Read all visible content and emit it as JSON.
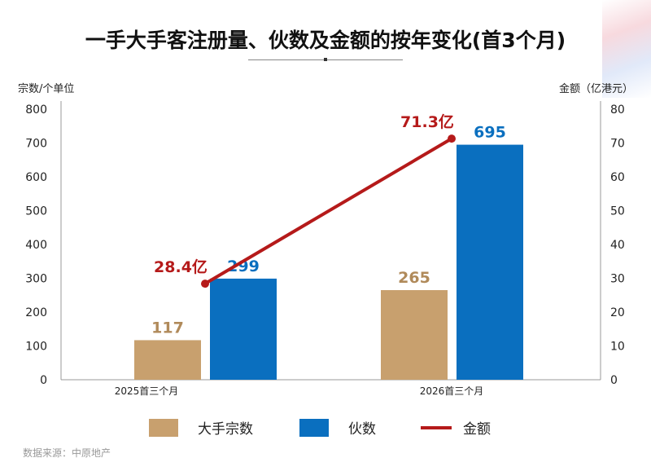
{
  "title": "一手大手客注册量、伙数及金额的按年变化(首3个月)",
  "source": "数据来源：中原地产",
  "colors": {
    "tan": "#C8A06E",
    "blue": "#0A6FBF",
    "red": "#B51A1A"
  },
  "chart_data": {
    "type": "bar+line",
    "title": "一手大手客注册量、伙数及金额的按年变化(首3个月)",
    "categories": [
      "2025首三个月",
      "2026首三个月"
    ],
    "ylabel_left": "宗数/个单位",
    "ylabel_right": "金额（亿港元）",
    "ylim_left": [
      0,
      800
    ],
    "ylim_right": [
      0,
      80
    ],
    "yticks_left": [
      0,
      100,
      200,
      300,
      400,
      500,
      600,
      700,
      800
    ],
    "yticks_right": [
      0,
      10,
      20,
      30,
      40,
      50,
      60,
      70,
      80
    ],
    "grid": false,
    "legend_position": "bottom",
    "series": [
      {
        "name": "大手宗数",
        "type": "bar",
        "axis": "left",
        "values": [
          117,
          265
        ],
        "labels": [
          "117",
          "265"
        ]
      },
      {
        "name": "伙数",
        "type": "bar",
        "axis": "left",
        "values": [
          299,
          695
        ],
        "labels": [
          "299",
          "695"
        ]
      },
      {
        "name": "金额",
        "type": "line",
        "axis": "right",
        "values": [
          28.4,
          71.3
        ],
        "labels": [
          "28.4亿",
          "71.3亿"
        ]
      }
    ]
  }
}
